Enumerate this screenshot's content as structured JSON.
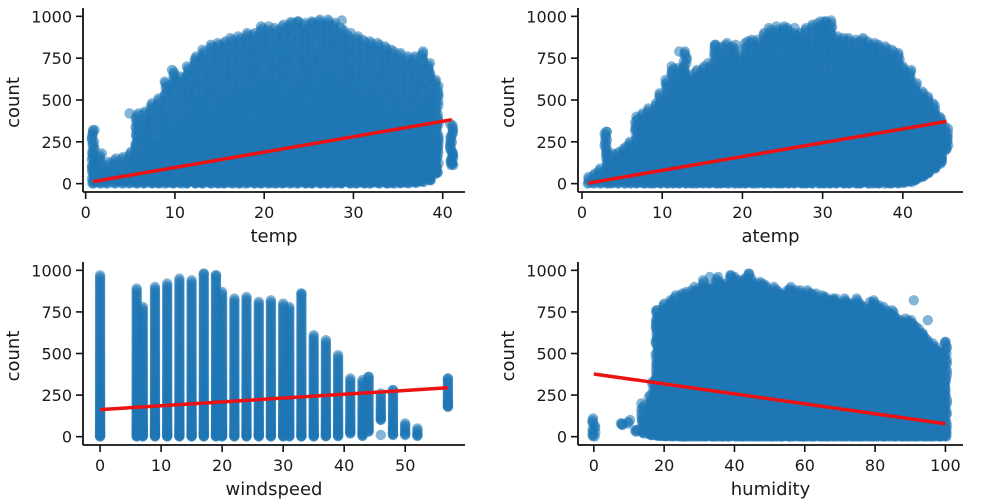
{
  "chart_data": [
    {
      "type": "scatter",
      "xlabel": "temp",
      "ylabel": "count",
      "xlim": [
        -0.3,
        42.5
      ],
      "ylim": [
        -50,
        1020
      ],
      "xticks": [
        0,
        10,
        20,
        30,
        40
      ],
      "yticks": [
        0,
        250,
        500,
        750,
        1000
      ],
      "xtick_labels": [
        "0",
        "10",
        "20",
        "30",
        "40"
      ],
      "ytick_labels": [
        "0",
        "250",
        "500",
        "750",
        "1000"
      ],
      "point_color": "#1f77b4",
      "line_color": "#ee1111",
      "regression_line": {
        "x": [
          0.82,
          41.0
        ],
        "y": [
          12,
          382
        ]
      },
      "x_values": [
        0.82,
        1.64,
        2.46,
        3.28,
        4.1,
        4.92,
        5.74,
        6.56,
        7.38,
        8.2,
        9.02,
        9.84,
        10.66,
        11.48,
        12.3,
        13.12,
        13.94,
        14.76,
        15.58,
        16.4,
        17.22,
        18.04,
        18.86,
        19.68,
        20.5,
        21.32,
        22.14,
        22.96,
        23.78,
        24.6,
        25.42,
        26.24,
        27.06,
        27.88,
        28.7,
        29.52,
        30.34,
        31.16,
        31.98,
        32.8,
        33.62,
        34.44,
        35.26,
        36.08,
        36.9,
        37.72,
        38.54,
        39.36,
        41.0
      ],
      "y_min": [
        0,
        0,
        0,
        1,
        1,
        1,
        1,
        1,
        1,
        1,
        1,
        1,
        1,
        1,
        1,
        1,
        1,
        1,
        1,
        1,
        1,
        1,
        1,
        1,
        1,
        1,
        1,
        1,
        1,
        1,
        1,
        1,
        1,
        1,
        1,
        1,
        1,
        1,
        1,
        1,
        1,
        1,
        2,
        2,
        5,
        10,
        20,
        60,
        110
      ],
      "y_max": [
        320,
        180,
        130,
        150,
        160,
        190,
        420,
        430,
        480,
        510,
        610,
        680,
        640,
        700,
        760,
        800,
        830,
        840,
        850,
        870,
        880,
        900,
        900,
        940,
        920,
        930,
        950,
        960,
        970,
        960,
        970,
        970,
        980,
        960,
        930,
        900,
        880,
        860,
        850,
        840,
        820,
        800,
        780,
        760,
        760,
        790,
        720,
        620,
        360
      ],
      "outliers": [
        [
          20.5,
          940
        ],
        [
          23.78,
          970
        ],
        [
          26.24,
          980
        ],
        [
          25.42,
          960
        ],
        [
          28.7,
          975
        ],
        [
          22.96,
          965
        ],
        [
          0.82,
          320
        ],
        [
          4.92,
          420
        ]
      ]
    },
    {
      "type": "scatter",
      "xlabel": "atemp",
      "ylabel": "count",
      "xlim": [
        -0.5,
        47.5
      ],
      "ylim": [
        -50,
        1020
      ],
      "xticks": [
        0,
        10,
        20,
        30,
        40
      ],
      "yticks": [
        0,
        250,
        500,
        750,
        1000
      ],
      "xtick_labels": [
        "0",
        "10",
        "20",
        "30",
        "40"
      ],
      "ytick_labels": [
        "0",
        "250",
        "500",
        "750",
        "1000"
      ],
      "point_color": "#1f77b4",
      "line_color": "#ee1111",
      "regression_line": {
        "x": [
          0.76,
          45.45
        ],
        "y": [
          3,
          372
        ]
      },
      "x_values": [
        0.76,
        1.5,
        2.27,
        3.03,
        3.79,
        4.55,
        5.3,
        6.06,
        6.82,
        7.58,
        8.33,
        9.09,
        9.85,
        10.6,
        11.37,
        12.12,
        12.88,
        13.64,
        14.39,
        15.15,
        15.91,
        16.67,
        17.42,
        18.18,
        18.94,
        19.7,
        20.45,
        21.21,
        21.97,
        22.73,
        23.48,
        24.24,
        25.0,
        25.76,
        26.52,
        27.27,
        28.03,
        28.79,
        29.55,
        30.3,
        31.06,
        31.82,
        32.58,
        33.33,
        34.09,
        34.85,
        35.61,
        36.36,
        37.12,
        37.88,
        38.64,
        39.39,
        40.15,
        40.91,
        41.67,
        42.42,
        43.18,
        43.94,
        44.7,
        45.45
      ],
      "y_min": [
        0,
        0,
        0,
        1,
        1,
        1,
        1,
        1,
        1,
        1,
        1,
        1,
        1,
        1,
        1,
        1,
        1,
        1,
        1,
        1,
        1,
        1,
        1,
        1,
        1,
        1,
        1,
        1,
        1,
        1,
        1,
        1,
        1,
        1,
        1,
        1,
        1,
        1,
        1,
        1,
        1,
        1,
        1,
        1,
        1,
        1,
        1,
        1,
        1,
        1,
        1,
        2,
        5,
        10,
        20,
        40,
        60,
        90,
        120,
        200
      ],
      "y_max": [
        40,
        60,
        90,
        310,
        180,
        190,
        220,
        250,
        400,
        420,
        450,
        480,
        540,
        620,
        700,
        690,
        790,
        650,
        680,
        700,
        720,
        830,
        820,
        840,
        830,
        760,
        850,
        860,
        860,
        900,
        930,
        920,
        940,
        930,
        900,
        900,
        930,
        950,
        970,
        970,
        960,
        880,
        870,
        870,
        860,
        870,
        850,
        840,
        830,
        820,
        800,
        780,
        700,
        680,
        600,
        550,
        520,
        480,
        400,
        340
      ],
      "outliers": [
        [
          12.12,
          790
        ],
        [
          16.67,
          830
        ],
        [
          24.24,
          940
        ],
        [
          30.3,
          970
        ],
        [
          31.06,
          975
        ],
        [
          26.52,
          930
        ],
        [
          3.03,
          310
        ]
      ]
    },
    {
      "type": "scatter",
      "xlabel": "windspeed",
      "ylabel": "count",
      "xlim": [
        -2.8,
        59.8
      ],
      "ylim": [
        -50,
        1020
      ],
      "xticks": [
        0,
        10,
        20,
        30,
        40,
        50
      ],
      "yticks": [
        0,
        250,
        500,
        750,
        1000
      ],
      "xtick_labels": [
        "0",
        "10",
        "20",
        "30",
        "40",
        "50"
      ],
      "ytick_labels": [
        "0",
        "250",
        "500",
        "750",
        "1000"
      ],
      "point_color": "#1f77b4",
      "line_color": "#ee1111",
      "regression_line": {
        "x": [
          0,
          57.0
        ],
        "y": [
          163,
          294
        ]
      },
      "x_values": [
        0,
        6.0032,
        7.0015,
        8.9981,
        11.0014,
        12.998,
        15.0013,
        16.9979,
        19.0012,
        19.9995,
        22.0028,
        23.9994,
        26.0027,
        27.9993,
        30.0026,
        31.0009,
        32.9975,
        35.0008,
        36.9974,
        39.0007,
        40.9973,
        43.0006,
        43.9989,
        46.0022,
        47.9988,
        50.0021,
        51.9987,
        56.9969
      ],
      "y_min": [
        1,
        1,
        1,
        1,
        1,
        1,
        1,
        1,
        1,
        1,
        1,
        1,
        1,
        1,
        1,
        1,
        1,
        1,
        2,
        3,
        20,
        5,
        30,
        100,
        10,
        10,
        5,
        180
      ],
      "y_max": [
        970,
        890,
        780,
        900,
        920,
        950,
        940,
        980,
        970,
        870,
        830,
        840,
        810,
        820,
        800,
        780,
        860,
        610,
        580,
        490,
        350,
        340,
        360,
        260,
        280,
        80,
        50,
        350
      ],
      "outliers": [
        [
          16.9979,
          980
        ],
        [
          19.0012,
          970
        ],
        [
          32.9975,
          860
        ],
        [
          43.9989,
          360
        ],
        [
          48.0,
          280
        ],
        [
          56.9969,
          350
        ],
        [
          56.9969,
          180
        ],
        [
          46.0022,
          10
        ],
        [
          51.9987,
          10
        ]
      ]
    },
    {
      "type": "scatter",
      "xlabel": "humidity",
      "ylabel": "count",
      "xlim": [
        -4.5,
        105
      ],
      "ylim": [
        -50,
        1020
      ],
      "xticks": [
        0,
        20,
        40,
        60,
        80,
        100
      ],
      "yticks": [
        0,
        250,
        500,
        750,
        1000
      ],
      "xtick_labels": [
        "0",
        "20",
        "40",
        "60",
        "80",
        "100"
      ],
      "ytick_labels": [
        "0",
        "250",
        "500",
        "750",
        "1000"
      ],
      "point_color": "#1f77b4",
      "line_color": "#ee1111",
      "regression_line": {
        "x": [
          0,
          100
        ],
        "y": [
          377,
          78
        ]
      },
      "x_values": [
        0,
        8,
        10,
        12,
        14,
        16,
        17,
        18,
        19,
        20,
        21,
        22,
        23,
        24,
        25,
        26,
        27,
        28,
        29,
        30,
        31,
        32,
        33,
        34,
        35,
        36,
        37,
        38,
        39,
        40,
        41,
        42,
        43,
        44,
        45,
        46,
        47,
        48,
        49,
        50,
        51,
        52,
        53,
        54,
        55,
        56,
        57,
        58,
        59,
        60,
        61,
        62,
        63,
        64,
        65,
        66,
        67,
        68,
        69,
        70,
        71,
        72,
        73,
        74,
        75,
        76,
        77,
        78,
        79,
        80,
        81,
        82,
        83,
        84,
        85,
        86,
        87,
        88,
        89,
        90,
        91,
        92,
        93,
        94,
        95,
        96,
        97,
        98,
        99,
        100
      ],
      "y_min": [
        1,
        70,
        80,
        30,
        20,
        10,
        10,
        5,
        5,
        3,
        3,
        2,
        2,
        1,
        1,
        1,
        1,
        1,
        1,
        1,
        1,
        1,
        1,
        1,
        1,
        1,
        1,
        1,
        1,
        1,
        1,
        1,
        1,
        1,
        1,
        1,
        1,
        1,
        1,
        1,
        1,
        1,
        1,
        1,
        1,
        1,
        1,
        1,
        1,
        1,
        1,
        1,
        1,
        1,
        1,
        1,
        1,
        1,
        1,
        1,
        1,
        1,
        1,
        1,
        1,
        1,
        1,
        1,
        1,
        1,
        1,
        1,
        1,
        1,
        1,
        1,
        1,
        1,
        1,
        1,
        1,
        1,
        1,
        1,
        1,
        1,
        1,
        1,
        1,
        1
      ],
      "y_max": [
        110,
        80,
        100,
        40,
        200,
        250,
        340,
        760,
        720,
        800,
        760,
        820,
        850,
        780,
        860,
        870,
        840,
        880,
        900,
        870,
        940,
        900,
        900,
        890,
        960,
        930,
        920,
        900,
        970,
        960,
        940,
        900,
        950,
        980,
        950,
        900,
        930,
        920,
        910,
        860,
        900,
        880,
        870,
        850,
        880,
        900,
        880,
        860,
        880,
        840,
        880,
        860,
        860,
        820,
        850,
        840,
        820,
        830,
        830,
        800,
        830,
        810,
        800,
        790,
        830,
        800,
        780,
        760,
        810,
        820,
        790,
        780,
        760,
        740,
        760,
        720,
        700,
        680,
        710,
        700,
        680,
        660,
        620,
        620,
        580,
        560,
        540,
        520,
        500,
        570
      ],
      "outliers": [
        [
          33,
          960
        ],
        [
          39,
          970
        ],
        [
          44,
          980
        ],
        [
          91,
          820
        ],
        [
          95,
          700
        ],
        [
          100,
          570
        ],
        [
          8,
          80
        ],
        [
          12,
          40
        ],
        [
          18,
          760
        ]
      ]
    }
  ]
}
